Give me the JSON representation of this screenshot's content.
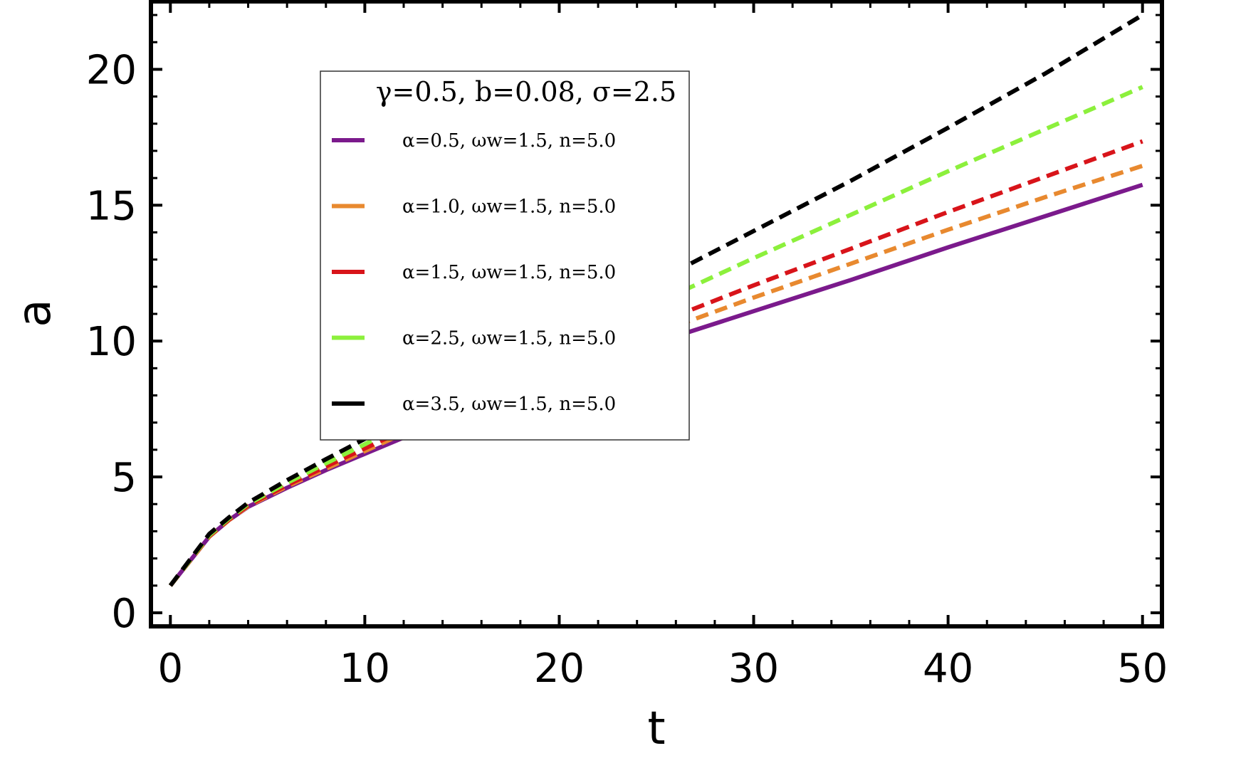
{
  "chart_data": {
    "type": "line",
    "xlabel": "t",
    "ylabel": "a",
    "xlim": [
      -1,
      51
    ],
    "ylim": [
      -0.5,
      22.5
    ],
    "xticks": [
      "0",
      "10",
      "20",
      "30",
      "40",
      "50"
    ],
    "yticks": [
      "0",
      "5",
      "10",
      "15",
      "20"
    ],
    "legend": {
      "placement": "upper-left-center",
      "title": "γ=0.5, b=0.08, σ=2.5"
    },
    "series": [
      {
        "name": "α=0.5, ωw=1.5, n=5.0",
        "color": "#7b1a8c",
        "dash": "solid",
        "points": [
          [
            0,
            1.0
          ],
          [
            1,
            1.9
          ],
          [
            2,
            2.8
          ],
          [
            3,
            3.4
          ],
          [
            4,
            3.9
          ],
          [
            6,
            4.6
          ],
          [
            8,
            5.25
          ],
          [
            10,
            5.85
          ],
          [
            12,
            6.45
          ],
          [
            15,
            7.3
          ],
          [
            20,
            8.65
          ],
          [
            25,
            9.95
          ],
          [
            30,
            11.1
          ],
          [
            35,
            12.25
          ],
          [
            40,
            13.45
          ],
          [
            45,
            14.6
          ],
          [
            50,
            15.75
          ]
        ]
      },
      {
        "name": "α=1.0, ωw=1.5, n=5.0",
        "color": "#e8892f",
        "dash": "dashed",
        "points": [
          [
            0,
            1.0
          ],
          [
            1,
            1.9
          ],
          [
            2,
            2.8
          ],
          [
            3,
            3.4
          ],
          [
            4,
            3.92
          ],
          [
            6,
            4.65
          ],
          [
            8,
            5.3
          ],
          [
            10,
            5.95
          ],
          [
            12,
            6.6
          ],
          [
            15,
            7.5
          ],
          [
            20,
            8.95
          ],
          [
            25,
            10.3
          ],
          [
            30,
            11.6
          ],
          [
            35,
            12.85
          ],
          [
            40,
            14.1
          ],
          [
            45,
            15.3
          ],
          [
            50,
            16.45
          ]
        ]
      },
      {
        "name": "α=1.5, ωw=1.5, n=5.0",
        "color": "#d8141a",
        "dash": "dashed",
        "points": [
          [
            0,
            1.0
          ],
          [
            1,
            1.9
          ],
          [
            2,
            2.82
          ],
          [
            3,
            3.42
          ],
          [
            4,
            3.95
          ],
          [
            6,
            4.7
          ],
          [
            8,
            5.38
          ],
          [
            10,
            6.05
          ],
          [
            12,
            6.72
          ],
          [
            15,
            7.7
          ],
          [
            20,
            9.2
          ],
          [
            25,
            10.65
          ],
          [
            30,
            12.05
          ],
          [
            35,
            13.4
          ],
          [
            40,
            14.75
          ],
          [
            45,
            16.05
          ],
          [
            50,
            17.35
          ]
        ]
      },
      {
        "name": "α=2.5, ωw=1.5, n=5.0",
        "color": "#8cf03c",
        "dash": "dashed",
        "points": [
          [
            0,
            1.0
          ],
          [
            1,
            1.92
          ],
          [
            2,
            2.85
          ],
          [
            3,
            3.46
          ],
          [
            4,
            4.0
          ],
          [
            6,
            4.78
          ],
          [
            8,
            5.5
          ],
          [
            10,
            6.2
          ],
          [
            12,
            6.95
          ],
          [
            15,
            8.05
          ],
          [
            20,
            9.75
          ],
          [
            25,
            11.4
          ],
          [
            30,
            13.05
          ],
          [
            35,
            14.65
          ],
          [
            40,
            16.25
          ],
          [
            45,
            17.8
          ],
          [
            50,
            19.35
          ]
        ]
      },
      {
        "name": "α=3.5, ωw=1.5, n=5.0",
        "color": "#000000",
        "dash": "dashed",
        "points": [
          [
            0,
            1.0
          ],
          [
            1,
            1.95
          ],
          [
            2,
            2.9
          ],
          [
            3,
            3.5
          ],
          [
            4,
            4.05
          ],
          [
            6,
            4.88
          ],
          [
            8,
            5.65
          ],
          [
            10,
            6.4
          ],
          [
            12,
            7.2
          ],
          [
            15,
            8.45
          ],
          [
            20,
            10.35
          ],
          [
            25,
            12.2
          ],
          [
            30,
            14.05
          ],
          [
            35,
            15.9
          ],
          [
            40,
            17.85
          ],
          [
            45,
            19.85
          ],
          [
            50,
            22.0
          ]
        ]
      }
    ]
  }
}
